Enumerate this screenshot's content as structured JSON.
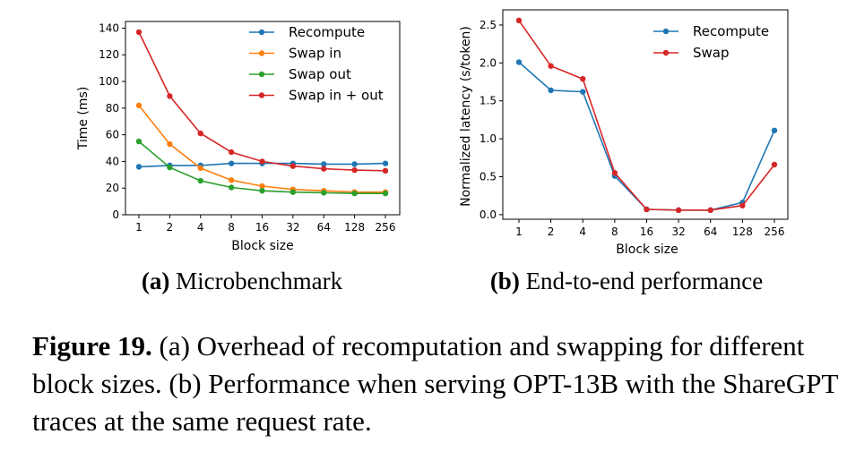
{
  "chart_data": [
    {
      "type": "line",
      "panel": "a",
      "categories": [
        "1",
        "2",
        "4",
        "8",
        "16",
        "32",
        "64",
        "128",
        "256"
      ],
      "xlabel": "Block size",
      "ylabel": "Time (ms)",
      "ylim": [
        0,
        145
      ],
      "yticks": [
        "0",
        "20",
        "40",
        "60",
        "80",
        "100",
        "120",
        "140"
      ],
      "legend_position": "top-right",
      "series": [
        {
          "name": "Recompute",
          "color": "#1f77b4",
          "values": [
            36,
            37,
            37,
            38.5,
            38.5,
            38.5,
            38,
            38,
            38.5
          ]
        },
        {
          "name": "Swap in",
          "color": "#ff7f0e",
          "values": [
            82,
            53,
            35,
            26,
            21.5,
            19,
            18,
            17,
            17
          ]
        },
        {
          "name": "Swap out",
          "color": "#2ca02c",
          "values": [
            55,
            35.5,
            25.5,
            20.5,
            18,
            17,
            16.5,
            16,
            16
          ]
        },
        {
          "name": "Swap in + out",
          "color": "#d62728",
          "values": [
            137,
            89,
            61,
            47,
            40,
            36.5,
            34.5,
            33.5,
            33
          ]
        }
      ]
    },
    {
      "type": "line",
      "panel": "b",
      "categories": [
        "1",
        "2",
        "4",
        "8",
        "16",
        "32",
        "64",
        "128",
        "256"
      ],
      "xlabel": "Block size",
      "ylabel": "Normalized latency (s/token)",
      "ylim": [
        0,
        2.6
      ],
      "yticks": [
        "0.0",
        "0.5",
        "1.0",
        "1.5",
        "2.0",
        "2.5"
      ],
      "legend_position": "top-right",
      "series": [
        {
          "name": "Recompute",
          "color": "#1f77b4",
          "values": [
            2.01,
            1.64,
            1.62,
            0.51,
            0.07,
            0.06,
            0.06,
            0.16,
            1.11
          ]
        },
        {
          "name": "Swap",
          "color": "#d62728",
          "values": [
            2.56,
            1.96,
            1.79,
            0.55,
            0.07,
            0.06,
            0.06,
            0.12,
            0.66
          ]
        }
      ]
    }
  ],
  "subcaptions": [
    {
      "label": "(a)",
      "text": "Microbenchmark"
    },
    {
      "label": "(b)",
      "text": "End-to-end performance"
    }
  ],
  "caption": {
    "label": "Figure 19.",
    "text": "(a) Overhead of recomputation and swapping for different block sizes. (b) Performance when serving OPT-13B with the ShareGPT traces at the same request rate."
  }
}
